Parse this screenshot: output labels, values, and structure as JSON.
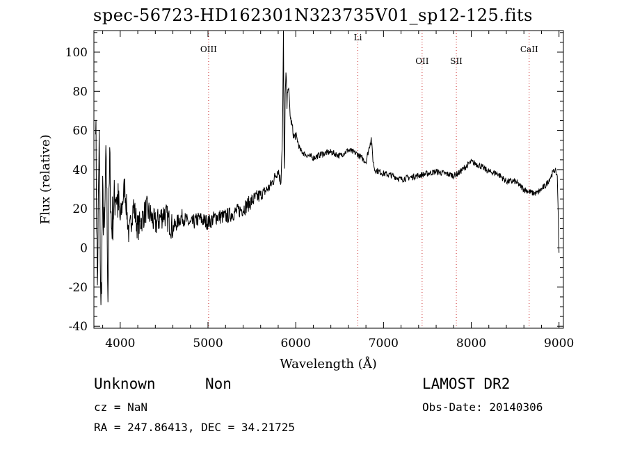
{
  "title": "spec-56723-HD162301N323735V01_sp12-125.fits",
  "chart_data": {
    "type": "line",
    "title": "spec-56723-HD162301N323735V01_sp12-125.fits",
    "xlabel": "Wavelength (Å)",
    "ylabel": "Flux (relative)",
    "xlim": [
      3700,
      9050
    ],
    "ylim": [
      -41,
      111
    ],
    "xticks": [
      4000,
      5000,
      6000,
      7000,
      8000,
      9000
    ],
    "yticks": [
      -40,
      -20,
      0,
      20,
      40,
      60,
      80,
      100
    ],
    "grid": false,
    "line_color": "#000000",
    "lines": [
      {
        "name": "OIII",
        "x": 5007,
        "label_y": 100
      },
      {
        "name": "Li",
        "x": 6708,
        "label_y": 106
      },
      {
        "name": "OII",
        "x": 7440,
        "label_y": 94
      },
      {
        "name": "SII",
        "x": 7830,
        "label_y": 94
      },
      {
        "name": "CaII",
        "x": 8660,
        "label_y": 100
      }
    ],
    "series": [
      {
        "x": [
          3720,
          3740,
          3760,
          3780,
          3800,
          3820,
          3840,
          3860,
          3880,
          3900,
          3950,
          4000,
          4050,
          4100,
          4150,
          4200,
          4300,
          4400,
          4500,
          4600,
          4700,
          4800,
          4900,
          5000,
          5100,
          5200,
          5300,
          5400,
          5500,
          5600,
          5700,
          5750,
          5800,
          5830,
          5850,
          5860,
          5870,
          5880,
          5890,
          5900,
          5910,
          5920,
          5940,
          5960,
          5980,
          6000,
          6050,
          6100,
          6200,
          6300,
          6400,
          6500,
          6600,
          6700,
          6800,
          6860,
          6880,
          6900,
          7000,
          7100,
          7200,
          7300,
          7400,
          7500,
          7600,
          7700,
          7800,
          7850,
          7900,
          7950,
          8000,
          8100,
          8200,
          8300,
          8400,
          8500,
          8600,
          8700,
          8750,
          8800,
          8850,
          8900,
          8950,
          8980,
          9000
        ],
        "y": [
          72,
          -20,
          55,
          -35,
          25,
          5,
          50,
          -22,
          45,
          10,
          30,
          14,
          32,
          6,
          22,
          10,
          20,
          12,
          18,
          10,
          16,
          12,
          15,
          13,
          16,
          16,
          18,
          20,
          24,
          27,
          31,
          35,
          40,
          33,
          60,
          110,
          30,
          78,
          90,
          72,
          84,
          80,
          66,
          62,
          56,
          58,
          50,
          48,
          46,
          48,
          49,
          47,
          50,
          48,
          44,
          56,
          45,
          40,
          38,
          37,
          35,
          36,
          37,
          38,
          39,
          38,
          37,
          38,
          40,
          42,
          44,
          42,
          39,
          38,
          34,
          34,
          30,
          28,
          28,
          30,
          32,
          36,
          40,
          37,
          -1
        ]
      }
    ]
  },
  "footer": {
    "object_class": "Unknown",
    "subclass": "Non",
    "survey": "LAMOST DR2",
    "cz": "cz = NaN",
    "obs_date": "Obs-Date: 20140306",
    "coords": "RA = 247.86413, DEC =  34.21725"
  }
}
